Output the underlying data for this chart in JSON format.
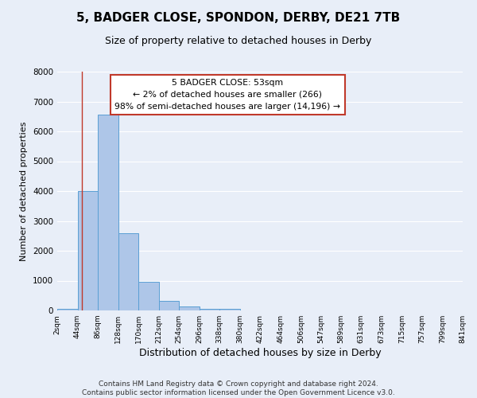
{
  "title": "5, BADGER CLOSE, SPONDON, DERBY, DE21 7TB",
  "subtitle": "Size of property relative to detached houses in Derby",
  "xlabel": "Distribution of detached houses by size in Derby",
  "ylabel": "Number of detached properties",
  "bin_edges": [
    2,
    44,
    86,
    128,
    170,
    212,
    254,
    296,
    338,
    380,
    422,
    464,
    506,
    547,
    589,
    631,
    673,
    715,
    757,
    799,
    841
  ],
  "bin_counts": [
    50,
    4000,
    6550,
    2600,
    960,
    320,
    130,
    50,
    50,
    0,
    0,
    0,
    0,
    0,
    0,
    0,
    0,
    0,
    0,
    0
  ],
  "bar_color": "#aec6e8",
  "bar_edge_color": "#5a9fd4",
  "vline_x": 53,
  "vline_color": "#c0392b",
  "annotation_text": "5 BADGER CLOSE: 53sqm\n← 2% of detached houses are smaller (266)\n98% of semi-detached houses are larger (14,196) →",
  "annotation_box_color": "white",
  "annotation_box_edge_color": "#c0392b",
  "ylim": [
    0,
    8000
  ],
  "xlim": [
    2,
    841
  ],
  "tick_labels": [
    "2sqm",
    "44sqm",
    "86sqm",
    "128sqm",
    "170sqm",
    "212sqm",
    "254sqm",
    "296sqm",
    "338sqm",
    "380sqm",
    "422sqm",
    "464sqm",
    "506sqm",
    "547sqm",
    "589sqm",
    "631sqm",
    "673sqm",
    "715sqm",
    "757sqm",
    "799sqm",
    "841sqm"
  ],
  "footer_line1": "Contains HM Land Registry data © Crown copyright and database right 2024.",
  "footer_line2": "Contains public sector information licensed under the Open Government Licence v3.0.",
  "background_color": "#e8eef8",
  "plot_background_color": "#e8eef8",
  "grid_color": "#ffffff",
  "title_fontsize": 11,
  "subtitle_fontsize": 9,
  "xlabel_fontsize": 9,
  "ylabel_fontsize": 8,
  "footer_fontsize": 6.5
}
